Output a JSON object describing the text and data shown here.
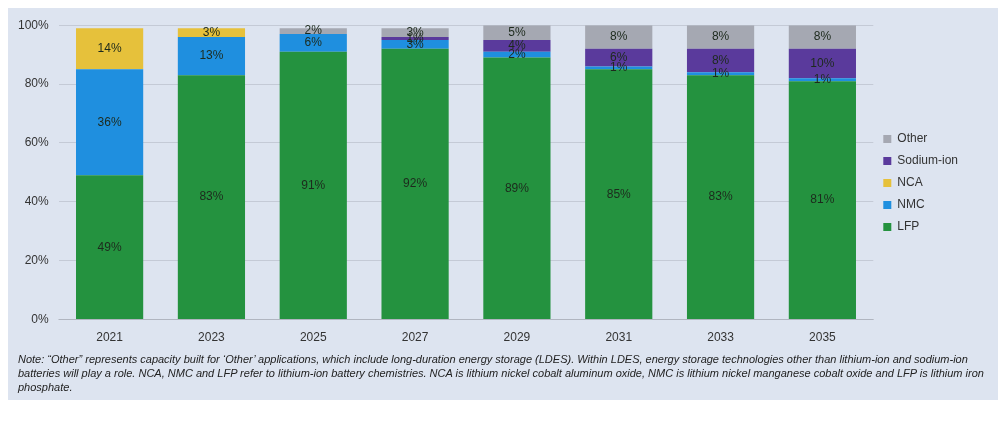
{
  "chart_data": {
    "type": "bar",
    "stacked": true,
    "categories": [
      "2021",
      "2023",
      "2025",
      "2027",
      "2029",
      "2031",
      "2033",
      "2035"
    ],
    "series": [
      {
        "name": "LFP",
        "color": "#24923f",
        "values": [
          49,
          83,
          91,
          92,
          89,
          85,
          83,
          81
        ],
        "value_labels": [
          "49%",
          "83%",
          "91%",
          "92%",
          "89%",
          "85%",
          "83%",
          "81%"
        ]
      },
      {
        "name": "NMC",
        "color": "#1f8fdf",
        "values": [
          36,
          13,
          6,
          3,
          2,
          1,
          1,
          1
        ],
        "value_labels": [
          "36%",
          "13%",
          "6%",
          "3%",
          "2%",
          "1%",
          "1%",
          "1%"
        ]
      },
      {
        "name": "NCA",
        "color": "#e6c13b",
        "values": [
          14,
          3,
          null,
          null,
          null,
          null,
          null,
          null
        ],
        "value_labels": [
          "14%",
          "3%",
          null,
          null,
          null,
          null,
          null,
          null
        ]
      },
      {
        "name": "Sodium-ion",
        "color": "#5a3a9c",
        "values": [
          null,
          null,
          null,
          1,
          4,
          6,
          8,
          10
        ],
        "value_labels": [
          null,
          null,
          null,
          "1%",
          "4%",
          "6%",
          "8%",
          "10%"
        ]
      },
      {
        "name": "Other",
        "color": "#a5a8b2",
        "values": [
          null,
          null,
          2,
          3,
          5,
          8,
          8,
          8
        ],
        "value_labels": [
          null,
          null,
          "2%",
          "3%",
          "5%",
          "8%",
          "8%",
          "8%"
        ]
      }
    ],
    "ylim": [
      0,
      100
    ],
    "yticks": [
      {
        "value": 0,
        "label": "0%"
      },
      {
        "value": 20,
        "label": "20%"
      },
      {
        "value": 40,
        "label": "40%"
      },
      {
        "value": 60,
        "label": "60%"
      },
      {
        "value": 80,
        "label": "80%"
      },
      {
        "value": 100,
        "label": "100%"
      }
    ],
    "grid": "y",
    "legend": "right",
    "annotations": [
      "Note: “Other” represents capacity built for ‘Other’ applications, which include long-duration energy storage (LDES). Within LDES, energy storage technologies other than lithium-ion and sodium-ion batteries will play a role. NCA, NMC and LFP refer to lithium-ion battery chemistries. NCA is lithium nickel cobalt aluminum oxide, NMC is lithium nickel manganese cobalt oxide and LFP is lithium iron phosphate."
    ]
  }
}
